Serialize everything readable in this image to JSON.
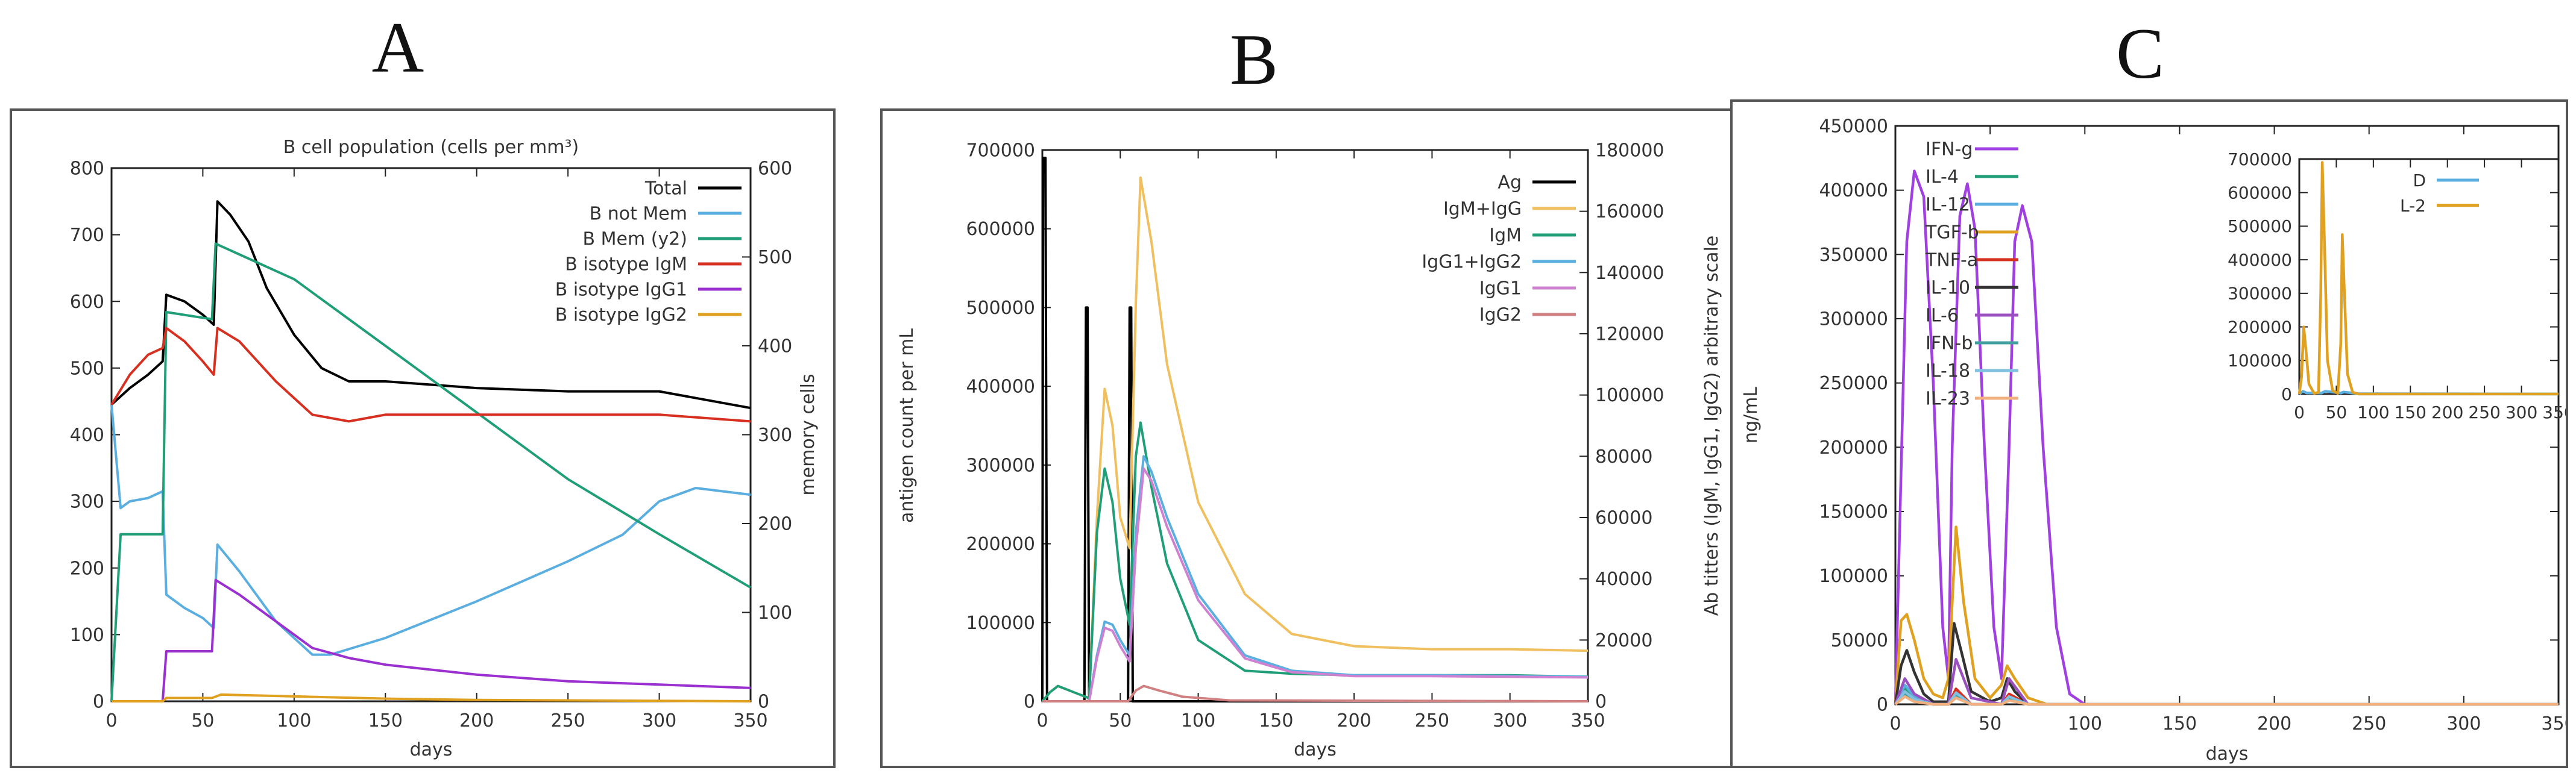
{
  "panels": [
    {
      "letter": "A"
    },
    {
      "letter": "B"
    },
    {
      "letter": "C"
    }
  ],
  "chart_data": [
    {
      "type": "line",
      "panel": "A",
      "title": "B cell population (cells per mm³)",
      "xlabel": "days",
      "ylabel": "",
      "y2label": "memory cells",
      "xlim": [
        0,
        350
      ],
      "ylim": [
        0,
        800
      ],
      "y2lim": [
        0,
        600
      ],
      "xticks": [
        "0",
        "50",
        "100",
        "150",
        "200",
        "250",
        "300",
        "350"
      ],
      "yticks": [
        "0",
        "100",
        "200",
        "300",
        "400",
        "500",
        "600",
        "700",
        "800"
      ],
      "y2ticks": [
        "0",
        "100",
        "200",
        "300",
        "400",
        "500",
        "600"
      ],
      "legend_position": "top-right",
      "series": [
        {
          "name": "Total",
          "color": "#000000",
          "axis": "y",
          "x": [
            0,
            10,
            20,
            28,
            30,
            40,
            50,
            56,
            58,
            65,
            75,
            85,
            100,
            115,
            130,
            150,
            175,
            200,
            250,
            300,
            350
          ],
          "y": [
            445,
            470,
            490,
            510,
            610,
            600,
            580,
            565,
            750,
            730,
            690,
            620,
            550,
            500,
            480,
            480,
            475,
            470,
            465,
            465,
            440
          ]
        },
        {
          "name": "B not Mem",
          "color": "#5aaee0",
          "axis": "y",
          "x": [
            0,
            5,
            10,
            20,
            28,
            30,
            40,
            50,
            56,
            58,
            70,
            90,
            110,
            120,
            150,
            200,
            250,
            280,
            300,
            320,
            350
          ],
          "y": [
            445,
            290,
            300,
            305,
            315,
            160,
            140,
            125,
            110,
            235,
            195,
            120,
            70,
            70,
            95,
            150,
            210,
            250,
            300,
            320,
            310
          ]
        },
        {
          "name": "B Mem (y2)",
          "color": "#1f9e78",
          "axis": "y2",
          "x": [
            0,
            5,
            28,
            30,
            55,
            57,
            100,
            150,
            200,
            250,
            300,
            350
          ],
          "y": [
            0,
            188,
            188,
            438,
            430,
            515,
            475,
            400,
            325,
            250,
            188,
            128
          ]
        },
        {
          "name": "B isotype IgM",
          "color": "#d73020",
          "axis": "y",
          "x": [
            0,
            10,
            20,
            28,
            30,
            40,
            50,
            56,
            58,
            70,
            90,
            110,
            130,
            150,
            200,
            250,
            300,
            350
          ],
          "y": [
            445,
            490,
            520,
            530,
            560,
            540,
            510,
            490,
            560,
            540,
            480,
            430,
            420,
            430,
            430,
            430,
            430,
            420
          ]
        },
        {
          "name": "B isotype IgG1",
          "color": "#9b30d0",
          "axis": "y",
          "x": [
            0,
            28,
            30,
            55,
            57,
            70,
            90,
            110,
            130,
            150,
            200,
            250,
            300,
            350
          ],
          "y": [
            0,
            0,
            75,
            75,
            182,
            160,
            120,
            80,
            65,
            55,
            40,
            30,
            25,
            20
          ]
        },
        {
          "name": "B isotype IgG2",
          "color": "#e0a020",
          "axis": "y",
          "x": [
            0,
            28,
            30,
            55,
            60,
            90,
            150,
            200,
            350
          ],
          "y": [
            0,
            0,
            5,
            5,
            10,
            8,
            4,
            2,
            0
          ]
        }
      ]
    },
    {
      "type": "line",
      "panel": "B",
      "title": "",
      "xlabel": "days",
      "ylabel": "antigen count per mL",
      "y2label": "Ab titters (IgM, IgG1, IgG2) arbitrary scale",
      "xlim": [
        0,
        350
      ],
      "ylim": [
        0,
        700000
      ],
      "y2lim": [
        0,
        180000
      ],
      "xticks": [
        "0",
        "50",
        "100",
        "150",
        "200",
        "250",
        "300",
        "350"
      ],
      "yticks": [
        "0",
        "100000",
        "200000",
        "300000",
        "400000",
        "500000",
        "600000",
        "700000"
      ],
      "y2ticks": [
        "0",
        "20000",
        "40000",
        "60000",
        "80000",
        "100000",
        "120000",
        "140000",
        "160000",
        "180000"
      ],
      "legend_position": "top-right",
      "series": [
        {
          "name": "Ag",
          "color": "#000000",
          "axis": "y",
          "x": [
            0,
            0.5,
            2,
            3,
            27,
            28,
            29,
            30,
            55,
            56,
            57,
            58,
            350
          ],
          "y": [
            0,
            690000,
            690000,
            0,
            0,
            500000,
            500000,
            0,
            0,
            500000,
            500000,
            0,
            0
          ]
        },
        {
          "name": "IgM+IgG",
          "color": "#f0c060",
          "axis": "y2",
          "x": [
            0,
            5,
            10,
            20,
            30,
            35,
            40,
            45,
            50,
            56,
            60,
            63,
            70,
            80,
            100,
            130,
            160,
            200,
            250,
            300,
            350
          ],
          "y": [
            0,
            3000,
            5000,
            3000,
            1000,
            60000,
            102000,
            90000,
            60000,
            50000,
            130000,
            171000,
            150000,
            110000,
            65000,
            35000,
            22000,
            18000,
            17000,
            17000,
            16500
          ]
        },
        {
          "name": "IgM",
          "color": "#1f9e78",
          "axis": "y2",
          "x": [
            0,
            5,
            10,
            20,
            30,
            35,
            40,
            45,
            50,
            56,
            60,
            63,
            70,
            80,
            100,
            130,
            160,
            200,
            250,
            300,
            350
          ],
          "y": [
            0,
            3000,
            5000,
            3000,
            1000,
            55000,
            76000,
            65000,
            40000,
            25000,
            80000,
            91000,
            70000,
            45000,
            20000,
            10000,
            9000,
            8500,
            8500,
            8500,
            8000
          ]
        },
        {
          "name": "IgG1+IgG2",
          "color": "#5aaee0",
          "axis": "y2",
          "x": [
            0,
            30,
            35,
            40,
            45,
            50,
            56,
            60,
            65,
            70,
            80,
            100,
            130,
            160,
            200,
            250,
            300,
            350
          ],
          "y": [
            0,
            0,
            15000,
            26000,
            25000,
            20000,
            15000,
            55000,
            80000,
            75000,
            60000,
            35000,
            15000,
            10000,
            8500,
            8500,
            8300,
            8000
          ]
        },
        {
          "name": "IgG1",
          "color": "#d080d0",
          "axis": "y2",
          "x": [
            0,
            30,
            35,
            40,
            45,
            50,
            56,
            60,
            65,
            70,
            80,
            100,
            130,
            160,
            200,
            250,
            300,
            350
          ],
          "y": [
            0,
            0,
            14000,
            24000,
            23000,
            18000,
            13000,
            50000,
            76000,
            72000,
            57000,
            33000,
            14000,
            9500,
            8200,
            8200,
            8000,
            7800
          ]
        },
        {
          "name": "IgG2",
          "color": "#d08080",
          "axis": "y2",
          "x": [
            0,
            55,
            60,
            65,
            75,
            90,
            120,
            350
          ],
          "y": [
            0,
            0,
            3500,
            5000,
            3500,
            1500,
            300,
            0
          ]
        }
      ]
    },
    {
      "type": "line",
      "panel": "C",
      "title": "",
      "xlabel": "days",
      "ylabel": "ng/mL",
      "xlim": [
        0,
        350
      ],
      "ylim": [
        0,
        450000
      ],
      "xticks": [
        "0",
        "50",
        "100",
        "150",
        "200",
        "250",
        "300",
        "350"
      ],
      "yticks": [
        "0",
        "50000",
        "100000",
        "150000",
        "200000",
        "250000",
        "300000",
        "350000",
        "400000",
        "450000"
      ],
      "legend_position": "top-left",
      "series": [
        {
          "name": "IFN-g",
          "color": "#a040e0",
          "x": [
            0,
            3,
            6,
            10,
            15,
            20,
            25,
            28,
            30,
            34,
            38,
            42,
            47,
            52,
            56,
            60,
            63,
            67,
            72,
            78,
            85,
            92,
            100,
            350
          ],
          "y": [
            0,
            180000,
            360000,
            415000,
            395000,
            250000,
            60000,
            20000,
            200000,
            380000,
            405000,
            370000,
            200000,
            60000,
            20000,
            200000,
            360000,
            388000,
            360000,
            200000,
            60000,
            8000,
            0,
            0
          ]
        },
        {
          "name": "IL-4",
          "color": "#1f9e78",
          "x": [
            0,
            5,
            10,
            20,
            28,
            32,
            40,
            56,
            60,
            70,
            350
          ],
          "y": [
            0,
            12000,
            5000,
            0,
            0,
            9000,
            0,
            0,
            6000,
            0,
            0
          ]
        },
        {
          "name": "IL-12",
          "color": "#5aaee0",
          "x": [
            0,
            5,
            10,
            20,
            28,
            32,
            40,
            56,
            60,
            70,
            350
          ],
          "y": [
            0,
            15000,
            6000,
            0,
            0,
            8000,
            0,
            0,
            5000,
            0,
            0
          ]
        },
        {
          "name": "TGF-b",
          "color": "#e0a020",
          "x": [
            0,
            3,
            6,
            10,
            15,
            20,
            25,
            28,
            32,
            36,
            42,
            50,
            56,
            59,
            63,
            70,
            80,
            350
          ],
          "y": [
            0,
            65000,
            70000,
            50000,
            20000,
            8000,
            5000,
            20000,
            138000,
            80000,
            20000,
            5000,
            15000,
            30000,
            20000,
            5000,
            0,
            0
          ]
        },
        {
          "name": "TNF-a",
          "color": "#d73020",
          "x": [
            0,
            5,
            10,
            20,
            28,
            32,
            40,
            56,
            60,
            70,
            350
          ],
          "y": [
            0,
            10000,
            4000,
            0,
            0,
            12000,
            0,
            0,
            8000,
            0,
            0
          ]
        },
        {
          "name": "IL-10",
          "color": "#333333",
          "x": [
            0,
            3,
            6,
            10,
            15,
            20,
            28,
            31,
            35,
            40,
            50,
            56,
            59,
            63,
            70,
            350
          ],
          "y": [
            0,
            30000,
            42000,
            25000,
            8000,
            2000,
            2000,
            63000,
            40000,
            10000,
            2000,
            5000,
            20000,
            10000,
            0,
            0
          ]
        },
        {
          "name": "IL-6",
          "color": "#9b50c0",
          "x": [
            0,
            5,
            10,
            20,
            28,
            32,
            40,
            56,
            60,
            70,
            350
          ],
          "y": [
            0,
            20000,
            8000,
            0,
            0,
            35000,
            5000,
            0,
            20000,
            0,
            0
          ]
        },
        {
          "name": "IFN-b",
          "color": "#40a0a0",
          "x": [
            0,
            5,
            10,
            20,
            28,
            32,
            40,
            56,
            60,
            70,
            350
          ],
          "y": [
            0,
            8000,
            3000,
            0,
            0,
            6000,
            0,
            0,
            4000,
            0,
            0
          ]
        },
        {
          "name": "IL-18",
          "color": "#80c0e0",
          "x": [
            0,
            5,
            10,
            20,
            28,
            32,
            40,
            56,
            60,
            70,
            350
          ],
          "y": [
            0,
            10000,
            4000,
            0,
            0,
            9000,
            0,
            0,
            6000,
            0,
            0
          ]
        },
        {
          "name": "IL-23",
          "color": "#f0b080",
          "x": [
            0,
            5,
            10,
            20,
            28,
            32,
            40,
            56,
            60,
            70,
            350
          ],
          "y": [
            0,
            6000,
            2000,
            0,
            0,
            5000,
            0,
            0,
            3000,
            0,
            0
          ]
        }
      ],
      "inset": {
        "xlim": [
          0,
          350
        ],
        "ylim": [
          0,
          700000
        ],
        "xticks": [
          "0",
          "50",
          "100",
          "150",
          "200",
          "250",
          "300",
          "350"
        ],
        "yticks": [
          "0",
          "100000",
          "200000",
          "300000",
          "400000",
          "500000",
          "600000",
          "700000"
        ],
        "legend_position": "top-left",
        "series": [
          {
            "name": "D",
            "color": "#5aaee0",
            "x": [
              0,
              5,
              10,
              30,
              35,
              56,
              60,
              80,
              350
            ],
            "y": [
              0,
              8000,
              3000,
              3000,
              8000,
              3000,
              6000,
              1000,
              0
            ]
          },
          {
            "name": "L-2",
            "color": "#e0a020",
            "x": [
              0,
              3,
              6,
              9,
              13,
              20,
              26,
              29,
              31,
              34,
              38,
              45,
              52,
              56,
              58,
              61,
              65,
              72,
              80,
              350
            ],
            "y": [
              0,
              50000,
              200000,
              130000,
              30000,
              2000,
              5000,
              300000,
              690000,
              450000,
              100000,
              10000,
              2000,
              150000,
              475000,
              300000,
              60000,
              5000,
              0,
              0
            ]
          }
        ]
      }
    }
  ]
}
